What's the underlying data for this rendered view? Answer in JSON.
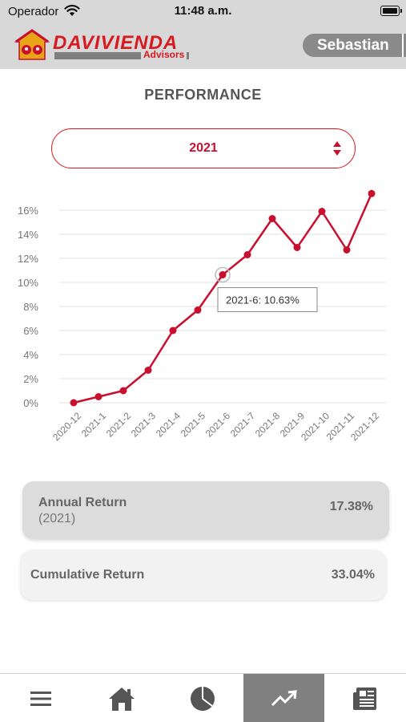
{
  "status_bar": {
    "carrier": "Operador",
    "time": "11:48 a.m."
  },
  "header": {
    "brand_name": "DAVIVIENDA",
    "brand_sub": "Advisors",
    "user_name": "Sebastian"
  },
  "page": {
    "title": "PERFORMANCE"
  },
  "year_selector": {
    "selected": "2021",
    "icon": "sort-arrows-icon"
  },
  "chart_data": {
    "type": "line",
    "x": [
      "2020-12",
      "2021-1",
      "2021-2",
      "2021-3",
      "2021-4",
      "2021-5",
      "2021-6",
      "2021-7",
      "2021-8",
      "2021-9",
      "2021-10",
      "2021-11",
      "2021-12"
    ],
    "values": [
      0.0,
      0.5,
      1.0,
      2.7,
      6.0,
      7.7,
      10.63,
      12.3,
      15.3,
      12.9,
      15.9,
      12.7,
      17.38
    ],
    "ylim": [
      0,
      16
    ],
    "yticks": [
      0,
      2,
      4,
      6,
      8,
      10,
      12,
      14,
      16
    ],
    "ytick_labels": [
      "0%",
      "2%",
      "4%",
      "6%",
      "8%",
      "10%",
      "12%",
      "14%",
      "16%"
    ],
    "highlight_index": 6,
    "tooltip": "2021-6: 10.63%",
    "grid": true,
    "line_color": "#c8102e",
    "title": "",
    "xlabel": "",
    "ylabel": ""
  },
  "annual_return": {
    "label": "Annual Return",
    "sub": "(2021)",
    "value": "17.38%"
  },
  "cumulative_return": {
    "label": "Cumulative Return",
    "value": "33.04%"
  },
  "tab_bar": {
    "tabs": [
      {
        "icon": "menu-icon",
        "active": false
      },
      {
        "icon": "home-icon",
        "active": false
      },
      {
        "icon": "pie-chart-icon",
        "active": false
      },
      {
        "icon": "trend-icon",
        "active": true
      },
      {
        "icon": "news-icon",
        "active": false
      }
    ]
  },
  "colors": {
    "accent": "#c8102e",
    "header_bg": "#d8d8d8",
    "active_tab": "#808080"
  }
}
